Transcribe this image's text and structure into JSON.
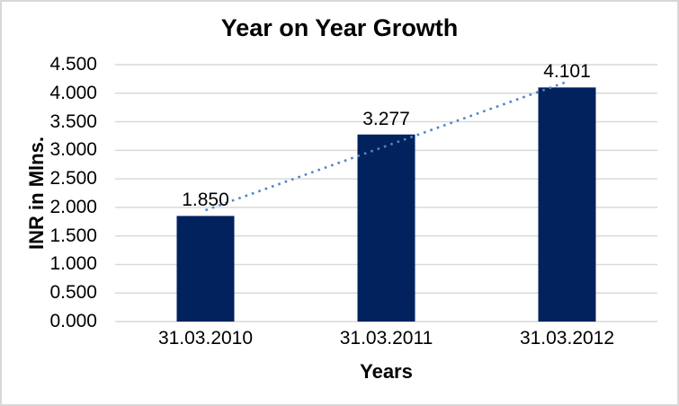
{
  "window": {
    "background_color": "#ffffff",
    "border_color": "#d8d8d8"
  },
  "chart_data": {
    "type": "bar",
    "title": "Year on Year Growth",
    "xlabel": "Years",
    "ylabel": "INR in Mlns.",
    "categories": [
      "31.03.2010",
      "31.03.2011",
      "31.03.2012"
    ],
    "values": [
      1.85,
      3.277,
      4.101
    ],
    "data_labels": [
      "1.850",
      "3.277",
      "4.101"
    ],
    "ylim": [
      0,
      4.5
    ],
    "y_tick_step": 0.5,
    "y_tick_decimals": 3,
    "grid": true,
    "legend": "none",
    "bar_color": "#02225e",
    "gridline_color": "#d9d9d9",
    "text_color": "#000000",
    "trendline": {
      "type": "linear",
      "style": "dotted",
      "color": "#4f86c6"
    }
  }
}
